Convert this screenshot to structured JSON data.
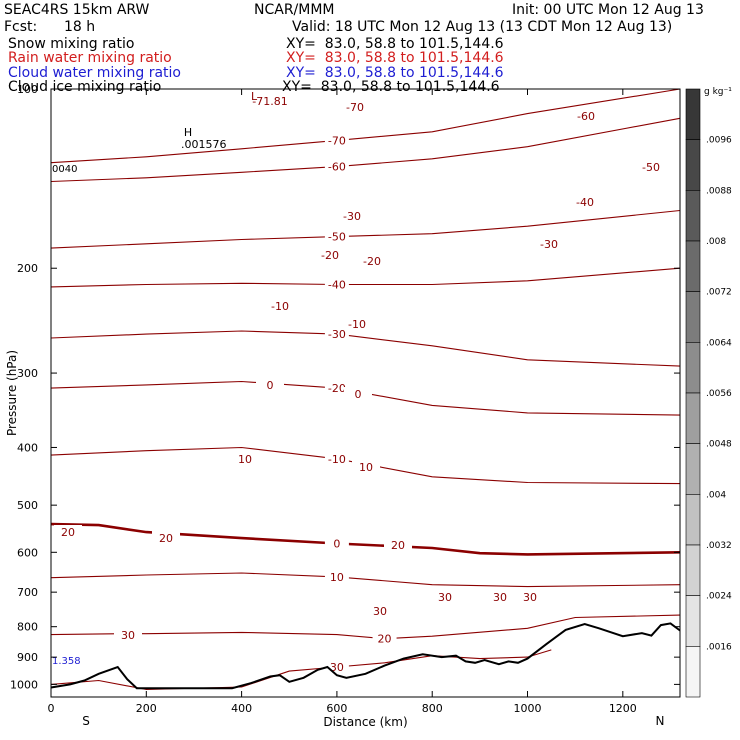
{
  "header": {
    "model": "SEAC4RS 15km ARW",
    "center": "NCAR/MMM",
    "init": "Init: 00 UTC Mon 12 Aug 13",
    "fcst_label": "Fcst:",
    "fcst_value": "18 h",
    "valid": "Valid: 18 UTC Mon 12 Aug 13 (13 CDT Mon 12 Aug 13)"
  },
  "fields": [
    {
      "name": "Snow mixing ratio",
      "xy": "XY=  83.0, 58.8 to 101.5,144.6",
      "color": "#000000"
    },
    {
      "name": "Rain water mixing ratio",
      "xy": "XY=  83.0, 58.8 to 101.5,144.6",
      "color": "#d21e1e"
    },
    {
      "name": "Cloud water mixing ratio",
      "xy": "XY=  83.0, 58.8 to 101.5,144.6",
      "color": "#1e1ed2"
    },
    {
      "name": "Cloud ice mixing ratio",
      "xy": "XY=  83.0, 58.8 to 101.5,144.6",
      "color": "#000000"
    }
  ],
  "chart_data": {
    "type": "line",
    "xlabel": "Distance (km)",
    "ylabel": "Pressure (hPa)",
    "xlim": [
      0,
      1320
    ],
    "ylim": [
      1050,
      100
    ],
    "y_scale": "log",
    "x_ticks": [
      0,
      200,
      400,
      600,
      800,
      1000,
      1200
    ],
    "y_ticks": [
      100,
      200,
      300,
      400,
      500,
      600,
      700,
      800,
      900,
      1000
    ],
    "x_end_labels": {
      "left": "S",
      "right": "N"
    },
    "line_color": "#8b0000",
    "temperature_contours": [
      {
        "level": -70,
        "x": [
          0,
          200,
          400,
          600,
          800,
          1000,
          1320
        ],
        "y": [
          133,
          130,
          126,
          122,
          118,
          110,
          100
        ]
      },
      {
        "level": -60,
        "x": [
          0,
          200,
          400,
          600,
          800,
          1000,
          1320
        ],
        "y": [
          143,
          141,
          138,
          135,
          131,
          125,
          112
        ]
      },
      {
        "level": -50,
        "x": [
          0,
          200,
          400,
          600,
          800,
          1000,
          1320
        ],
        "y": [
          185,
          182,
          179,
          177,
          175,
          170,
          160
        ]
      },
      {
        "level": -40,
        "x": [
          0,
          200,
          400,
          600,
          800,
          1000,
          1320
        ],
        "y": [
          215,
          213,
          212,
          213,
          213,
          210,
          200
        ]
      },
      {
        "level": -30,
        "x": [
          0,
          200,
          400,
          600,
          800,
          1000,
          1320
        ],
        "y": [
          262,
          258,
          255,
          258,
          270,
          285,
          292
        ]
      },
      {
        "level": -20,
        "x": [
          0,
          200,
          400,
          600,
          800,
          1000,
          1320
        ],
        "y": [
          318,
          314,
          310,
          318,
          340,
          350,
          353
        ]
      },
      {
        "level": -10,
        "x": [
          0,
          200,
          400,
          600,
          800,
          1000,
          1320
        ],
        "y": [
          412,
          405,
          400,
          418,
          448,
          458,
          460
        ]
      },
      {
        "level": 0,
        "x": [
          0,
          100,
          200,
          400,
          600,
          800,
          900,
          1000,
          1320
        ],
        "y": [
          538,
          540,
          555,
          568,
          580,
          590,
          602,
          605,
          600
        ]
      },
      {
        "level": 10,
        "x": [
          0,
          200,
          400,
          600,
          800,
          1000,
          1320
        ],
        "y": [
          662,
          655,
          650,
          660,
          680,
          685,
          680
        ]
      },
      {
        "level": 20,
        "x": [
          0,
          150,
          200,
          400,
          600,
          700,
          800,
          1000,
          1100,
          1320
        ],
        "y": [
          825,
          822,
          822,
          818,
          825,
          838,
          830,
          805,
          772,
          765
        ]
      },
      {
        "level": 30,
        "x": [
          0,
          100,
          200,
          400,
          500,
          600,
          700,
          800,
          900,
          1000,
          1050
        ],
        "y": [
          1000,
          985,
          1020,
          1010,
          950,
          935,
          920,
          895,
          905,
          900,
          875
        ]
      }
    ],
    "extra_isotherm_labels": [
      "-71.81",
      "-70",
      "-30",
      "-20",
      "-20",
      "-10",
      "-10",
      "0",
      "0",
      "10",
      "10",
      "20",
      "20",
      "20",
      "30",
      "30",
      "30",
      "30",
      "30",
      "-60",
      "-50",
      "-40",
      "-30"
    ],
    "high_label": "H",
    "high_value": ".001576",
    "low_label": "L",
    "left_edge_value": "0040",
    "left_bottom_value": "1.358",
    "terrain": {
      "x": [
        0,
        40,
        70,
        100,
        140,
        160,
        180,
        380,
        420,
        460,
        480,
        500,
        530,
        560,
        580,
        600,
        620,
        660,
        700,
        740,
        780,
        820,
        850,
        870,
        890,
        910,
        940,
        960,
        980,
        1000,
        1040,
        1080,
        1120,
        1150,
        1180,
        1200,
        1240,
        1260,
        1280,
        1300,
        1320
      ],
      "p": [
        1012,
        1000,
        985,
        960,
        935,
        980,
        1015,
        1015,
        995,
        970,
        965,
        990,
        975,
        945,
        935,
        965,
        975,
        960,
        930,
        905,
        890,
        900,
        895,
        915,
        920,
        910,
        925,
        915,
        920,
        905,
        855,
        810,
        792,
        805,
        820,
        830,
        820,
        828,
        795,
        790,
        812
      ]
    },
    "colorbar": {
      "unit": "g kg⁻¹",
      "ticks": [
        ".0096",
        ".0088",
        ".008",
        ".0072",
        ".0064",
        ".0056",
        ".0048",
        ".004",
        ".0032",
        ".0024",
        ".0016"
      ]
    }
  }
}
